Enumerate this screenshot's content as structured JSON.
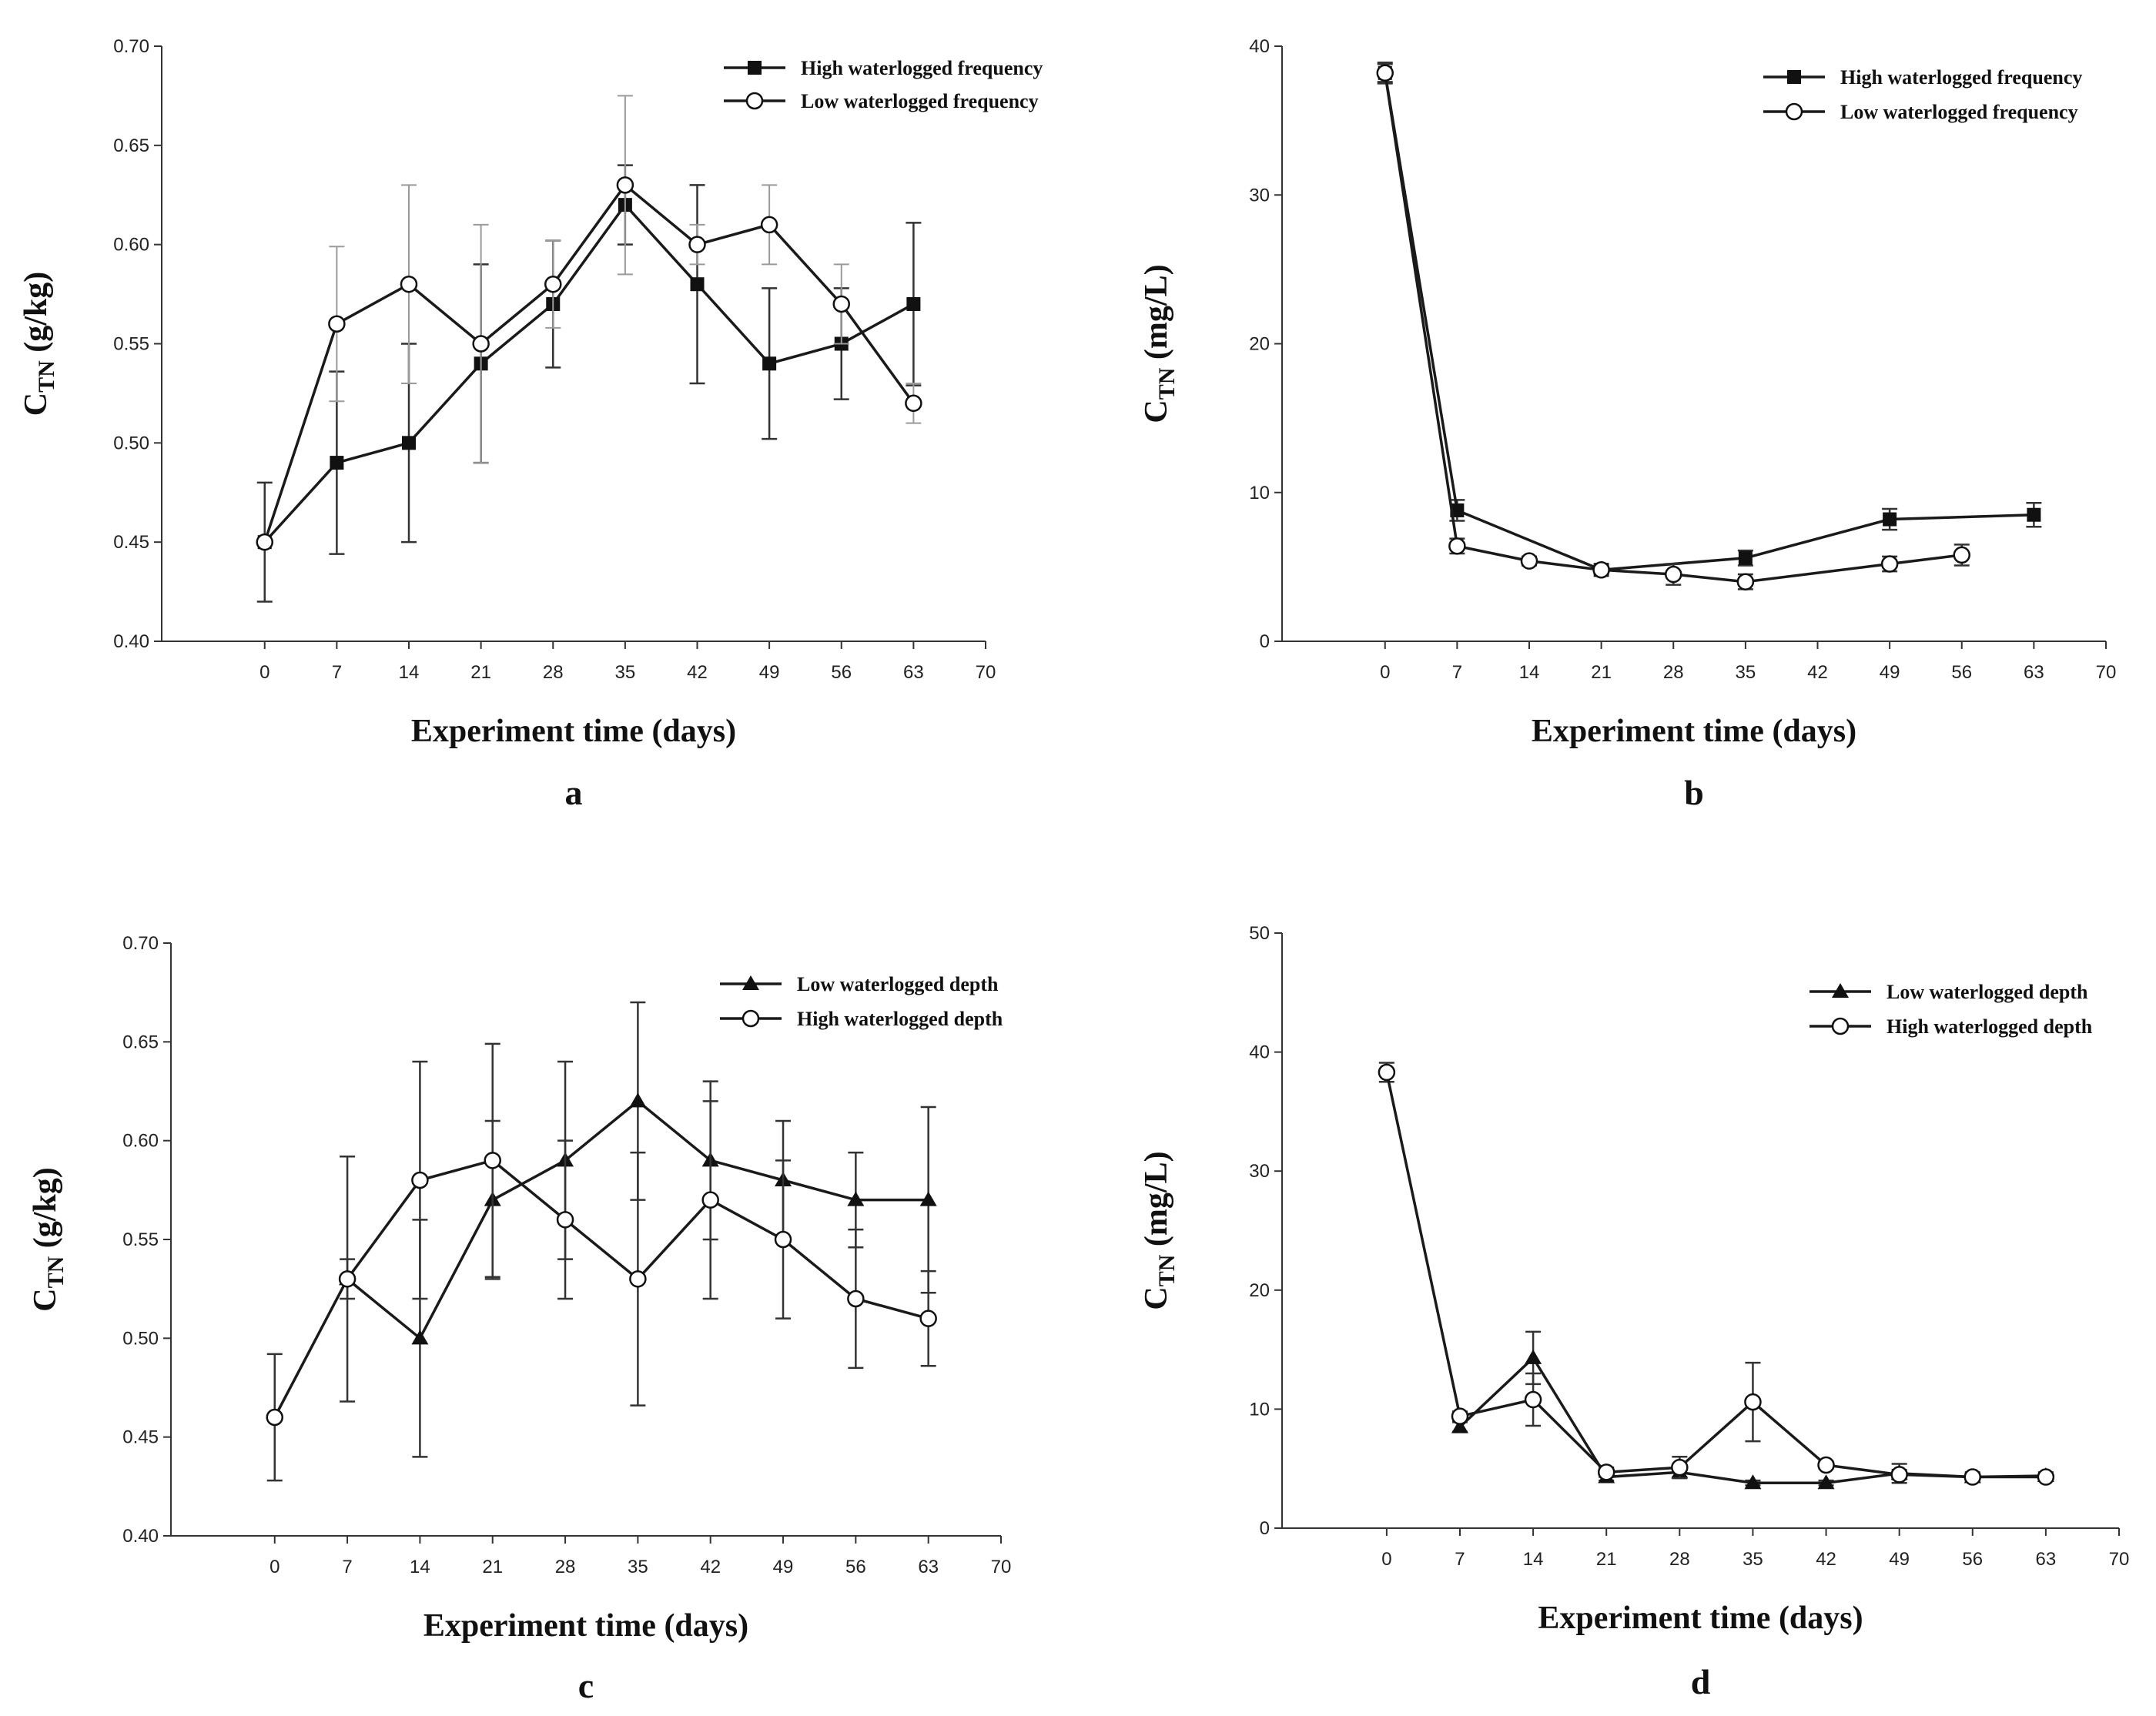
{
  "chart_data": [
    {
      "panel": "a",
      "type": "line",
      "title": "",
      "xlabel": "Experiment time (days)",
      "ylabel": "C",
      "ylabel_sub": "TN",
      "ylabel_unit": " (g/kg)",
      "xlim": [
        -10,
        70
      ],
      "ylim": [
        0.4,
        0.7
      ],
      "xticks": [
        0,
        7,
        14,
        21,
        28,
        35,
        42,
        49,
        56,
        63,
        70
      ],
      "yticks": [
        0.4,
        0.45,
        0.5,
        0.55,
        0.6,
        0.65,
        0.7
      ],
      "ytick_labels": [
        "0.40",
        "0.45",
        "0.50",
        "0.55",
        "0.60",
        "0.65",
        "0.70"
      ],
      "legend_position": "top-right",
      "series": [
        {
          "name": "High waterlogged frequency",
          "marker": "square",
          "x": [
            0,
            7,
            14,
            21,
            28,
            35,
            42,
            49,
            56,
            63
          ],
          "values": [
            0.45,
            0.49,
            0.5,
            0.54,
            0.57,
            0.62,
            0.58,
            0.54,
            0.55,
            0.57
          ],
          "errors": [
            0.03,
            0.046,
            0.05,
            0.05,
            0.032,
            0.02,
            0.05,
            0.038,
            0.028,
            0.041
          ]
        },
        {
          "name": "Low waterlogged frequency",
          "marker": "circle",
          "x": [
            0,
            7,
            14,
            21,
            28,
            35,
            42,
            49,
            56,
            63
          ],
          "values": [
            0.45,
            0.56,
            0.58,
            0.55,
            0.58,
            0.63,
            0.6,
            0.61,
            0.57,
            0.52
          ],
          "errors": [
            0.0,
            0.039,
            0.05,
            0.06,
            0.022,
            0.045,
            0.01,
            0.02,
            0.02,
            0.01
          ]
        }
      ]
    },
    {
      "panel": "b",
      "type": "line",
      "title": "",
      "xlabel": "Experiment time (days)",
      "ylabel": "C",
      "ylabel_sub": "TN",
      "ylabel_unit": " (mg/L)",
      "xlim": [
        -10,
        70
      ],
      "ylim": [
        0,
        40
      ],
      "xticks": [
        0,
        7,
        14,
        21,
        28,
        35,
        42,
        49,
        56,
        63,
        70
      ],
      "yticks": [
        0,
        10,
        20,
        30,
        40
      ],
      "ytick_labels": [
        "0",
        "10",
        "20",
        "30",
        "40"
      ],
      "legend_position": "top-right",
      "series": [
        {
          "name": "High waterlogged frequency",
          "marker": "square",
          "x": [
            0,
            7,
            21,
            35,
            49,
            63
          ],
          "values": [
            38.2,
            8.8,
            4.8,
            5.6,
            8.2,
            8.5
          ],
          "errors": [
            0.6,
            0.7,
            0.4,
            0.5,
            0.7,
            0.8
          ]
        },
        {
          "name": "Low waterlogged frequency",
          "marker": "circle",
          "x": [
            0,
            7,
            14,
            21,
            28,
            35,
            49,
            56
          ],
          "values": [
            38.2,
            6.4,
            5.4,
            4.8,
            4.5,
            4.0,
            5.2,
            5.8
          ],
          "errors": [
            0.7,
            0.5,
            0.3,
            0.3,
            0.7,
            0.5,
            0.5,
            0.7
          ]
        }
      ]
    },
    {
      "panel": "c",
      "type": "line",
      "title": "",
      "xlabel": "Experiment time (days)",
      "ylabel": "C",
      "ylabel_sub": "TN",
      "ylabel_unit": " (g/kg)",
      "xlim": [
        -10,
        70
      ],
      "ylim": [
        0.4,
        0.7
      ],
      "xticks": [
        0,
        7,
        14,
        21,
        28,
        35,
        42,
        49,
        56,
        63,
        70
      ],
      "yticks": [
        0.4,
        0.45,
        0.5,
        0.55,
        0.6,
        0.65,
        0.7
      ],
      "ytick_labels": [
        "0.40",
        "0.45",
        "0.50",
        "0.55",
        "0.60",
        "0.65",
        "0.70"
      ],
      "legend_position": "top-right",
      "series": [
        {
          "name": "Low waterlogged depth",
          "marker": "triangle",
          "x": [
            7,
            14,
            21,
            28,
            35,
            42,
            49,
            56,
            63
          ],
          "values": [
            0.53,
            0.5,
            0.57,
            0.59,
            0.62,
            0.59,
            0.58,
            0.57,
            0.57
          ],
          "errors": [
            0.01,
            0.06,
            0.04,
            0.05,
            0.05,
            0.04,
            0.03,
            0.024,
            0.047
          ]
        },
        {
          "name": "High waterlogged depth",
          "marker": "circle",
          "x": [
            0,
            7,
            14,
            21,
            28,
            35,
            42,
            49,
            56,
            63
          ],
          "values": [
            0.46,
            0.53,
            0.58,
            0.59,
            0.56,
            0.53,
            0.57,
            0.55,
            0.52,
            0.51
          ],
          "errors": [
            0.032,
            0.062,
            0.06,
            0.059,
            0.04,
            0.064,
            0.05,
            0.04,
            0.035,
            0.024
          ]
        }
      ]
    },
    {
      "panel": "d",
      "type": "line",
      "title": "",
      "xlabel": "Experiment time (days)",
      "ylabel": "C",
      "ylabel_sub": "TN",
      "ylabel_unit": " (mg/L)",
      "xlim": [
        -10,
        70
      ],
      "ylim": [
        0,
        50
      ],
      "xticks": [
        0,
        7,
        14,
        21,
        28,
        35,
        42,
        49,
        56,
        63,
        70
      ],
      "yticks": [
        0,
        10,
        20,
        30,
        40,
        50
      ],
      "ytick_labels": [
        "0",
        "10",
        "20",
        "30",
        "40",
        "50"
      ],
      "legend_position": "top-right",
      "series": [
        {
          "name": "Low waterlogged depth",
          "marker": "triangle",
          "x": [
            7,
            14,
            21,
            28,
            35,
            42,
            49,
            56,
            63
          ],
          "values": [
            8.5,
            14.3,
            4.3,
            4.7,
            3.8,
            3.8,
            4.6,
            4.3,
            4.4
          ],
          "errors": [
            0.4,
            2.2,
            0.3,
            0.4,
            0.2,
            0.2,
            0.8,
            0.4,
            0.3
          ]
        },
        {
          "name": "High waterlogged depth",
          "marker": "circle",
          "x": [
            0,
            7,
            14,
            21,
            28,
            35,
            42,
            49,
            56,
            63
          ],
          "values": [
            38.3,
            9.4,
            10.8,
            4.7,
            5.1,
            10.6,
            5.3,
            4.5,
            4.3,
            4.3
          ],
          "errors": [
            0.8,
            0.4,
            2.2,
            0.4,
            0.9,
            3.3,
            0.3,
            0.4,
            0.3,
            0.3
          ]
        }
      ]
    }
  ]
}
